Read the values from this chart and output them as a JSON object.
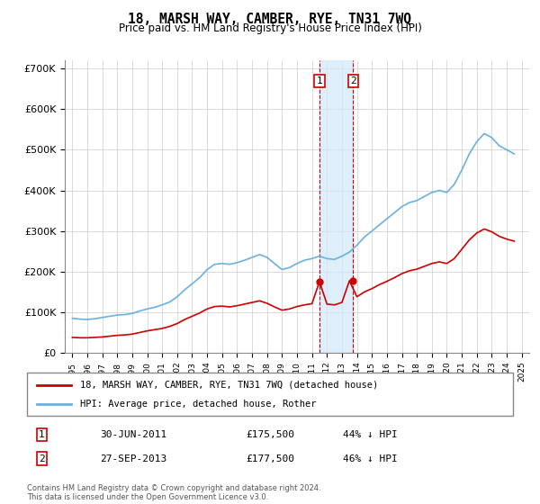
{
  "title": "18, MARSH WAY, CAMBER, RYE, TN31 7WQ",
  "subtitle": "Price paid vs. HM Land Registry's House Price Index (HPI)",
  "ylabel": "",
  "ylim": [
    0,
    720000
  ],
  "yticks": [
    0,
    100000,
    200000,
    300000,
    400000,
    500000,
    600000,
    700000
  ],
  "ytick_labels": [
    "£0",
    "£100K",
    "£200K",
    "£300K",
    "£400K",
    "£500K",
    "£600K",
    "£700K"
  ],
  "legend_line1": "18, MARSH WAY, CAMBER, RYE, TN31 7WQ (detached house)",
  "legend_line2": "HPI: Average price, detached house, Rother",
  "sale1_date": "30-JUN-2011",
  "sale1_price": "£175,500",
  "sale1_hpi": "44% ↓ HPI",
  "sale2_date": "27-SEP-2013",
  "sale2_price": "£177,500",
  "sale2_hpi": "46% ↓ HPI",
  "footer": "Contains HM Land Registry data © Crown copyright and database right 2024.\nThis data is licensed under the Open Government Licence v3.0.",
  "hpi_color": "#6ab0e0",
  "price_color": "#cc0000",
  "sale_marker_color": "#cc0000",
  "annotation_box_color": "#cc0000",
  "shaded_region_color": "#d0e8f8",
  "background_color": "#ffffff",
  "grid_color": "#cccccc",
  "sale1_x": 2011.5,
  "sale2_x": 2013.75,
  "hpi_data": {
    "years": [
      1995.0,
      1995.5,
      1996.0,
      1996.5,
      1997.0,
      1997.5,
      1998.0,
      1998.5,
      1999.0,
      1999.5,
      2000.0,
      2000.5,
      2001.0,
      2001.5,
      2002.0,
      2002.5,
      2003.0,
      2003.5,
      2004.0,
      2004.5,
      2005.0,
      2005.5,
      2006.0,
      2006.5,
      2007.0,
      2007.5,
      2008.0,
      2008.5,
      2009.0,
      2009.5,
      2010.0,
      2010.5,
      2011.0,
      2011.5,
      2012.0,
      2012.5,
      2013.0,
      2013.5,
      2014.0,
      2014.5,
      2015.0,
      2015.5,
      2016.0,
      2016.5,
      2017.0,
      2017.5,
      2018.0,
      2018.5,
      2019.0,
      2019.5,
      2020.0,
      2020.5,
      2021.0,
      2021.5,
      2022.0,
      2022.5,
      2023.0,
      2023.5,
      2024.0,
      2024.5
    ],
    "values": [
      85000,
      83000,
      82000,
      84000,
      87000,
      90000,
      93000,
      94000,
      97000,
      103000,
      108000,
      112000,
      118000,
      125000,
      138000,
      155000,
      170000,
      185000,
      205000,
      218000,
      220000,
      218000,
      222000,
      228000,
      235000,
      242000,
      235000,
      220000,
      205000,
      210000,
      220000,
      228000,
      232000,
      238000,
      232000,
      230000,
      238000,
      248000,
      265000,
      285000,
      300000,
      315000,
      330000,
      345000,
      360000,
      370000,
      375000,
      385000,
      395000,
      400000,
      395000,
      415000,
      450000,
      490000,
      520000,
      540000,
      530000,
      510000,
      500000,
      490000
    ]
  },
  "price_data": {
    "years": [
      1995.0,
      1995.5,
      1996.0,
      1996.5,
      1997.0,
      1997.5,
      1998.0,
      1998.5,
      1999.0,
      1999.5,
      2000.0,
      2000.5,
      2001.0,
      2001.5,
      2002.0,
      2002.5,
      2003.0,
      2003.5,
      2004.0,
      2004.5,
      2005.0,
      2005.5,
      2006.0,
      2006.5,
      2007.0,
      2007.5,
      2008.0,
      2008.5,
      2009.0,
      2009.5,
      2010.0,
      2010.5,
      2011.0,
      2011.5,
      2012.0,
      2012.5,
      2013.0,
      2013.5,
      2014.0,
      2014.5,
      2015.0,
      2015.5,
      2016.0,
      2016.5,
      2017.0,
      2017.5,
      2018.0,
      2018.5,
      2019.0,
      2019.5,
      2020.0,
      2020.5,
      2021.0,
      2021.5,
      2022.0,
      2022.5,
      2023.0,
      2023.5,
      2024.0,
      2024.5
    ],
    "values": [
      38000,
      37000,
      37000,
      38000,
      39000,
      41000,
      43000,
      44000,
      46000,
      50000,
      54000,
      57000,
      60000,
      65000,
      72000,
      82000,
      90000,
      98000,
      108000,
      114000,
      115000,
      113000,
      116000,
      120000,
      124000,
      128000,
      122000,
      113000,
      105000,
      108000,
      114000,
      118000,
      121000,
      175500,
      120000,
      118000,
      124000,
      177500,
      138000,
      150000,
      158000,
      168000,
      176000,
      185000,
      195000,
      202000,
      206000,
      213000,
      220000,
      224000,
      220000,
      232000,
      255000,
      278000,
      295000,
      305000,
      298000,
      287000,
      280000,
      275000
    ]
  }
}
